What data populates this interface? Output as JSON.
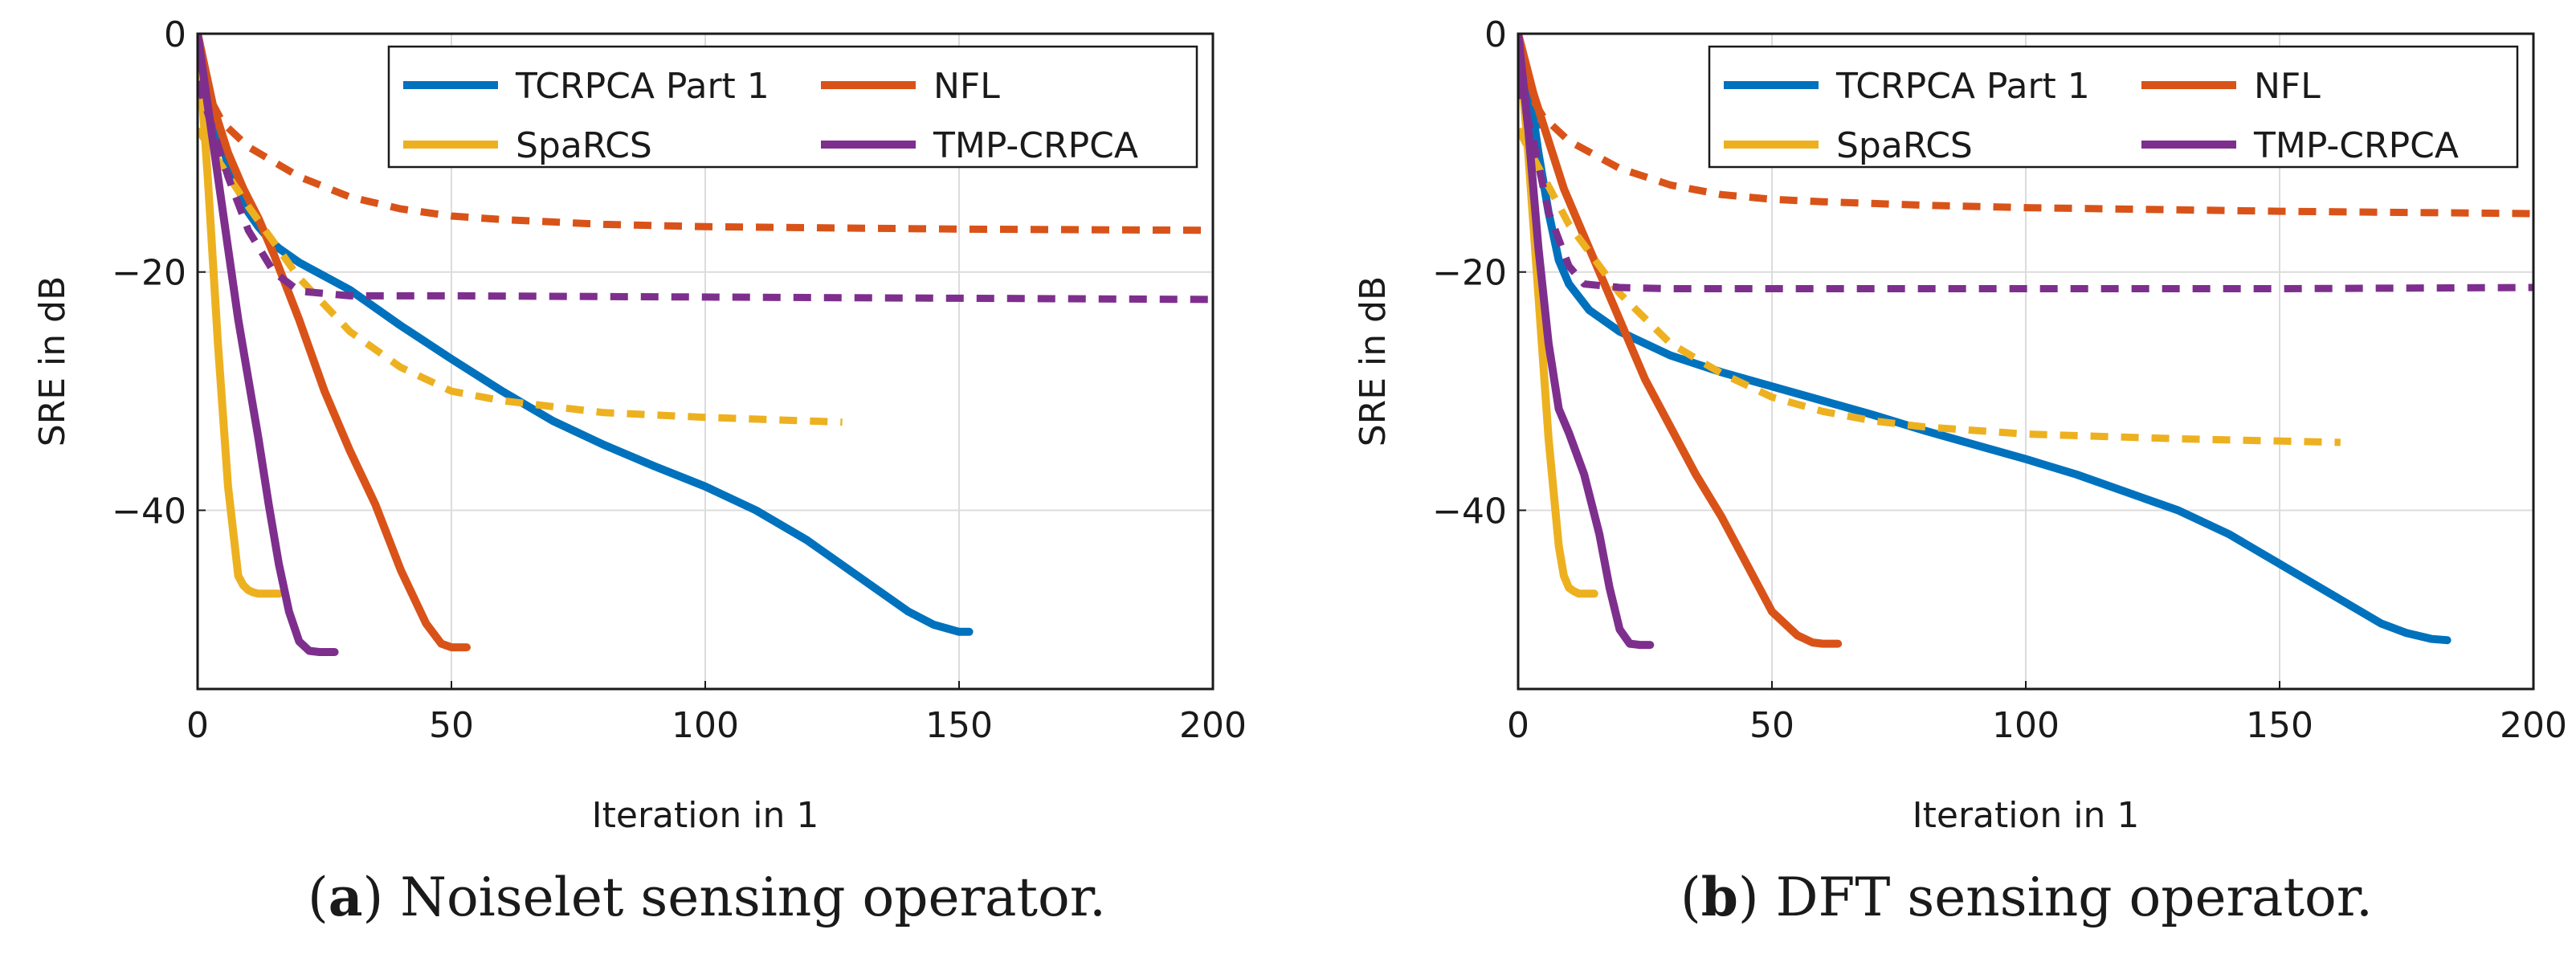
{
  "chart_data": [
    {
      "type": "line",
      "caption_letter": "a",
      "caption_text": " Noiselet sensing operator.",
      "xlabel": "Iteration in 1",
      "ylabel": "SRE in dB",
      "xlim": [
        0,
        200
      ],
      "ylim": [
        -55,
        0
      ],
      "xticks": [
        "0",
        "50",
        "100",
        "150",
        "200"
      ],
      "yticks": [
        "0",
        "−20",
        "−40"
      ],
      "legend": [
        "TCRPCA Part 1",
        "NFL",
        "SpaRCS",
        "TMP-CRPCA"
      ],
      "series": [
        {
          "name": "TCRPCA Part 1",
          "color": "#0072bd",
          "style": "solid",
          "x": [
            0,
            2,
            4,
            6,
            8,
            10,
            12,
            14,
            16,
            20,
            30,
            40,
            50,
            60,
            70,
            80,
            90,
            100,
            110,
            120,
            130,
            140,
            145,
            150,
            152
          ],
          "y": [
            0,
            -4,
            -8,
            -11,
            -13,
            -15,
            -16.2,
            -17.2,
            -18,
            -19.2,
            -21.5,
            -24.5,
            -27.3,
            -30,
            -32.5,
            -34.5,
            -36.3,
            -38,
            -40,
            -42.5,
            -45.5,
            -48.5,
            -49.6,
            -50.2,
            -50.2
          ]
        },
        {
          "name": "TCRPCA Part 1 (dashed)",
          "color": "#0072bd",
          "style": "dashed",
          "x": [
            0,
            1,
            2,
            3,
            4
          ],
          "y": [
            0,
            -3.5,
            -5.5,
            -7,
            -8
          ]
        },
        {
          "name": "NFL",
          "color": "#d95319",
          "style": "solid",
          "x": [
            0,
            3,
            6,
            9,
            12,
            15,
            20,
            25,
            30,
            35,
            40,
            45,
            48,
            50,
            53
          ],
          "y": [
            0,
            -6,
            -10,
            -13,
            -15.5,
            -18.5,
            -24,
            -30,
            -35,
            -39.5,
            -45,
            -49.5,
            -51.2,
            -51.5,
            -51.5
          ]
        },
        {
          "name": "NFL (dashed)",
          "color": "#d95319",
          "style": "dashed",
          "x": [
            0,
            5,
            10,
            20,
            30,
            40,
            50,
            60,
            80,
            100,
            150,
            200
          ],
          "y": [
            -3.5,
            -7.5,
            -9.5,
            -12,
            -13.7,
            -14.7,
            -15.3,
            -15.6,
            -16,
            -16.2,
            -16.4,
            -16.5
          ]
        },
        {
          "name": "SpaRCS",
          "color": "#edb120",
          "style": "solid",
          "x": [
            0,
            2,
            4,
            6,
            8,
            9,
            10,
            11,
            12,
            13,
            14,
            16
          ],
          "y": [
            0,
            -12,
            -26,
            -38,
            -45.5,
            -46.3,
            -46.7,
            -46.9,
            -47,
            -47,
            -47,
            -47
          ]
        },
        {
          "name": "SpaRCS (dashed)",
          "color": "#edb120",
          "style": "dashed",
          "x": [
            0,
            10,
            20,
            30,
            40,
            50,
            60,
            70,
            80,
            100,
            127
          ],
          "y": [
            -8,
            -14.5,
            -20.5,
            -25,
            -28,
            -30,
            -30.8,
            -31.3,
            -31.8,
            -32.2,
            -32.6
          ]
        },
        {
          "name": "TMP-CRPCA",
          "color": "#7e2f8e",
          "style": "solid",
          "x": [
            0,
            2,
            4,
            6,
            8,
            10,
            12,
            14,
            16,
            18,
            20,
            22,
            24,
            27
          ],
          "y": [
            0,
            -6,
            -12,
            -18,
            -24,
            -29,
            -34,
            -39.5,
            -44.5,
            -48.5,
            -51,
            -51.8,
            -51.9,
            -51.9
          ]
        },
        {
          "name": "TMP-CRPCA (dashed)",
          "color": "#7e2f8e",
          "style": "dashed",
          "x": [
            0,
            3,
            6,
            10,
            15,
            20,
            30,
            50,
            100,
            150,
            200
          ],
          "y": [
            -4,
            -8,
            -12,
            -16.5,
            -20,
            -21.6,
            -22,
            -22,
            -22.1,
            -22.2,
            -22.3
          ]
        }
      ]
    },
    {
      "type": "line",
      "caption_letter": "b",
      "caption_text": " DFT sensing operator.",
      "xlabel": "Iteration in 1",
      "ylabel": "SRE in dB",
      "xlim": [
        0,
        200
      ],
      "ylim": [
        -55,
        0
      ],
      "xticks": [
        "0",
        "50",
        "100",
        "150",
        "200"
      ],
      "yticks": [
        "0",
        "−20",
        "−40"
      ],
      "legend": [
        "TCRPCA Part 1",
        "NFL",
        "SpaRCS",
        "TMP-CRPCA"
      ],
      "series": [
        {
          "name": "TCRPCA Part 1",
          "color": "#0072bd",
          "style": "solid",
          "x": [
            0,
            2,
            4,
            6,
            8,
            10,
            14,
            20,
            30,
            40,
            50,
            60,
            70,
            80,
            90,
            100,
            110,
            120,
            130,
            140,
            150,
            160,
            170,
            175,
            180,
            183
          ],
          "y": [
            0,
            -4,
            -10,
            -15,
            -19,
            -21,
            -23.2,
            -25,
            -27,
            -28.4,
            -29.6,
            -30.8,
            -32,
            -33.3,
            -34.5,
            -35.7,
            -37,
            -38.5,
            -40,
            -42,
            -44.5,
            -47,
            -49.5,
            -50.3,
            -50.8,
            -50.9
          ]
        },
        {
          "name": "TCRPCA Part 1 (dashed)",
          "color": "#0072bd",
          "style": "dashed",
          "x": [
            0,
            1,
            2,
            3,
            4
          ],
          "y": [
            0,
            -3.5,
            -5.5,
            -7,
            -8
          ]
        },
        {
          "name": "NFL",
          "color": "#d95319",
          "style": "solid",
          "x": [
            0,
            3,
            6,
            9,
            12,
            16,
            20,
            25,
            30,
            35,
            40,
            45,
            50,
            55,
            58,
            60,
            63
          ],
          "y": [
            0,
            -5,
            -9,
            -13,
            -16,
            -20,
            -24,
            -29,
            -33,
            -37,
            -40.5,
            -44.5,
            -48.5,
            -50.5,
            -51.1,
            -51.2,
            -51.2
          ]
        },
        {
          "name": "NFL (dashed)",
          "color": "#d95319",
          "style": "dashed",
          "x": [
            0,
            5,
            10,
            20,
            30,
            40,
            50,
            60,
            80,
            100,
            150,
            200
          ],
          "y": [
            -3.5,
            -7,
            -9,
            -11.3,
            -12.7,
            -13.5,
            -13.9,
            -14.1,
            -14.4,
            -14.6,
            -14.9,
            -15.1
          ]
        },
        {
          "name": "SpaRCS",
          "color": "#edb120",
          "style": "solid",
          "x": [
            0,
            2,
            4,
            6,
            8,
            9,
            10,
            11,
            12,
            13,
            15
          ],
          "y": [
            0,
            -10,
            -22,
            -34,
            -43,
            -45.5,
            -46.5,
            -46.8,
            -47,
            -47,
            -47
          ]
        },
        {
          "name": "SpaRCS (dashed)",
          "color": "#edb120",
          "style": "dashed",
          "x": [
            0,
            10,
            20,
            30,
            40,
            50,
            60,
            70,
            80,
            100,
            130,
            162
          ],
          "y": [
            -8,
            -16,
            -21.8,
            -26,
            -28.5,
            -30.5,
            -31.7,
            -32.5,
            -33,
            -33.6,
            -34,
            -34.3
          ]
        },
        {
          "name": "TMP-CRPCA",
          "color": "#7e2f8e",
          "style": "solid",
          "x": [
            0,
            2,
            4,
            6,
            8,
            10,
            13,
            16,
            18,
            20,
            22,
            24,
            26
          ],
          "y": [
            0,
            -8,
            -18,
            -26,
            -31.5,
            -33.5,
            -37,
            -42,
            -46.5,
            -50,
            -51.2,
            -51.3,
            -51.3
          ]
        },
        {
          "name": "TMP-CRPCA (dashed)",
          "color": "#7e2f8e",
          "style": "dashed",
          "x": [
            0,
            3,
            6,
            10,
            13,
            20,
            30,
            50,
            100,
            150,
            200
          ],
          "y": [
            -4,
            -9,
            -15,
            -19.5,
            -21,
            -21.3,
            -21.4,
            -21.4,
            -21.4,
            -21.4,
            -21.3
          ]
        }
      ]
    }
  ]
}
